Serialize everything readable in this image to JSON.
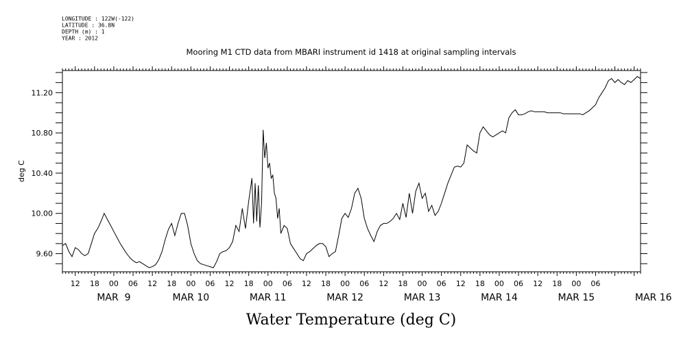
{
  "header": {
    "lines": [
      "LONGITUDE : 122W(-122)",
      "LATITUDE : 36.8N",
      "DEPTH (m) : 1",
      "YEAR : 2012"
    ]
  },
  "chart_data": {
    "type": "line",
    "title": "Mooring M1 CTD data from MBARI instrument id 1418 at original sampling intervals",
    "xlabel": "Water Temperature (deg C)",
    "ylabel": "deg C",
    "ylim": [
      9.42,
      11.42
    ],
    "yticks": [
      "9.60",
      "10.00",
      "10.40",
      "10.80",
      "11.20"
    ],
    "xlim_hours": [
      8,
      188
    ],
    "hour_ticks": [
      "12",
      "18",
      "00",
      "06",
      "12",
      "18",
      "00",
      "06",
      "12",
      "18",
      "00",
      "06",
      "12",
      "18",
      "00",
      "06",
      "12",
      "18",
      "00",
      "06",
      "12",
      "18",
      "00",
      "06",
      "12",
      "18",
      "00",
      "06"
    ],
    "day_labels": [
      "MAR  9",
      "MAR 10",
      "MAR 11",
      "MAR 12",
      "MAR 13",
      "MAR 14",
      "MAR 15",
      "MAR 16"
    ],
    "series": [
      {
        "x": [
          8,
          9,
          10,
          11,
          12,
          13,
          14,
          15,
          16,
          17,
          18,
          19,
          20,
          21,
          22,
          23,
          24,
          25,
          26,
          27,
          28,
          29,
          30,
          31,
          32,
          33,
          34,
          35,
          36,
          37,
          38,
          39,
          40,
          41,
          42,
          43,
          44,
          45,
          46,
          47,
          48,
          49,
          50,
          51,
          52,
          53,
          54,
          55,
          56,
          57,
          58,
          59,
          60,
          61,
          62,
          63,
          64,
          65,
          66,
          67,
          67.5,
          68,
          68.5,
          69,
          69.5,
          70,
          70.5,
          71,
          71.5,
          72,
          72.5,
          73,
          73.5,
          74,
          74.5,
          75,
          75.5,
          76,
          77,
          78,
          79,
          80,
          81,
          82,
          83,
          84,
          85,
          86,
          87,
          88,
          89,
          90,
          91,
          92,
          93,
          94,
          95,
          96,
          97,
          98,
          99,
          100,
          101,
          102,
          103,
          104,
          105,
          106,
          107,
          108,
          109,
          110,
          111,
          112,
          113,
          114,
          115,
          116,
          117,
          118,
          119,
          120,
          121,
          122,
          123,
          124,
          125,
          126,
          127,
          128,
          129,
          130,
          131,
          132,
          133,
          134,
          135,
          136,
          137,
          138,
          139,
          140,
          141,
          142,
          143,
          144,
          145,
          146,
          147,
          148,
          149,
          150,
          151,
          152,
          153,
          154,
          155,
          156,
          157,
          158,
          159,
          160,
          161,
          162,
          163,
          164,
          165,
          166,
          167,
          168,
          169,
          170,
          171,
          172,
          173,
          174,
          175,
          176,
          177,
          178,
          179,
          180,
          181,
          182,
          183,
          184,
          185,
          186,
          187,
          188
        ],
        "y": [
          9.68,
          9.7,
          9.62,
          9.57,
          9.66,
          9.64,
          9.6,
          9.58,
          9.6,
          9.7,
          9.8,
          9.85,
          9.92,
          10.0,
          9.94,
          9.88,
          9.82,
          9.76,
          9.7,
          9.65,
          9.6,
          9.56,
          9.53,
          9.51,
          9.52,
          9.5,
          9.48,
          9.46,
          9.47,
          9.49,
          9.54,
          9.62,
          9.74,
          9.84,
          9.9,
          9.78,
          9.9,
          10.0,
          10.0,
          9.88,
          9.7,
          9.6,
          9.53,
          9.5,
          9.49,
          9.48,
          9.47,
          9.46,
          9.52,
          9.6,
          9.62,
          9.63,
          9.66,
          9.72,
          9.88,
          9.82,
          10.05,
          9.85,
          10.12,
          10.35,
          9.9,
          10.3,
          9.92,
          10.28,
          9.86,
          10.1,
          10.83,
          10.55,
          10.7,
          10.45,
          10.5,
          10.35,
          10.38,
          10.2,
          10.15,
          9.95,
          10.05,
          9.8,
          9.88,
          9.85,
          9.7,
          9.65,
          9.6,
          9.55,
          9.53,
          9.6,
          9.62,
          9.65,
          9.68,
          9.7,
          9.7,
          9.67,
          9.57,
          9.6,
          9.62,
          9.78,
          9.95,
          10.0,
          9.96,
          10.05,
          10.2,
          10.25,
          10.15,
          9.95,
          9.85,
          9.78,
          9.72,
          9.82,
          9.88,
          9.9,
          9.9,
          9.92,
          9.95,
          10.0,
          9.94,
          10.1,
          9.96,
          10.2,
          10.0,
          10.22,
          10.3,
          10.15,
          10.2,
          10.02,
          10.08,
          9.98,
          10.02,
          10.1,
          10.2,
          10.3,
          10.38,
          10.46,
          10.47,
          10.46,
          10.5,
          10.68,
          10.65,
          10.62,
          10.6,
          10.8,
          10.86,
          10.82,
          10.78,
          10.76,
          10.78,
          10.8,
          10.82,
          10.8,
          10.95,
          11.0,
          11.03,
          10.98,
          10.98,
          10.99,
          11.01,
          11.02,
          11.01,
          11.01,
          11.01,
          11.01,
          11.0,
          11.0,
          11.0,
          11.0,
          11.0,
          10.99,
          10.99,
          10.99,
          10.99,
          10.99,
          10.99,
          10.98,
          11.0,
          11.02,
          11.05,
          11.08,
          11.15,
          11.2,
          11.25,
          11.32,
          11.34,
          11.3,
          11.33,
          11.3,
          11.28,
          11.32,
          11.3,
          11.33,
          11.36,
          11.34
        ]
      }
    ],
    "grid": false
  }
}
